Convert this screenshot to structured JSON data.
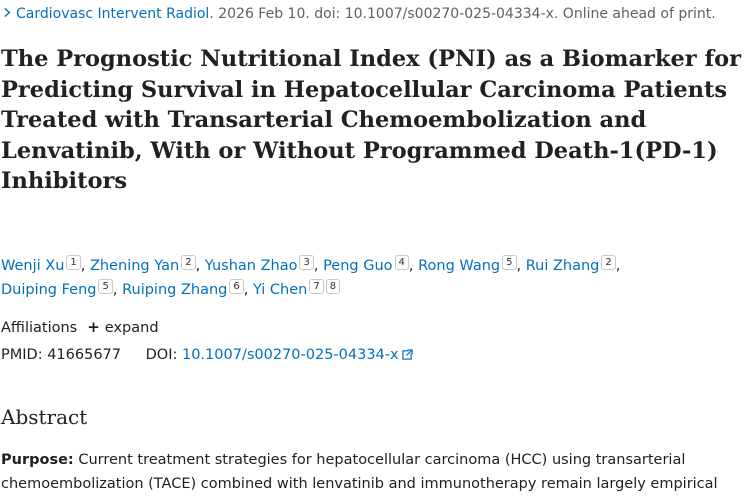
{
  "citation": {
    "journal": "Cardiovasc Intervent Radiol.",
    "rest": " 2026 Feb 10. doi: 10.1007/s00270-025-04334-x. Online ahead of print."
  },
  "title": "The Prognostic Nutritional Index (PNI) as a Biomarker for Predicting Survival in Hepatocellular Carcinoma Patients Treated with Transarterial Chemoembolization and Lenvatinib, With or Without Programmed Death-1(PD-1) Inhibitors",
  "authors": [
    {
      "name": "Wenji Xu",
      "affs": [
        "1"
      ]
    },
    {
      "name": "Zhening Yan",
      "affs": [
        "2"
      ]
    },
    {
      "name": "Yushan Zhao",
      "affs": [
        "3"
      ]
    },
    {
      "name": "Peng Guo",
      "affs": [
        "4"
      ]
    },
    {
      "name": "Rong Wang",
      "affs": [
        "5"
      ]
    },
    {
      "name": "Rui Zhang",
      "affs": [
        "2"
      ]
    },
    {
      "name": "Duiping Feng",
      "affs": [
        "5"
      ]
    },
    {
      "name": "Ruiping Zhang",
      "affs": [
        "6"
      ]
    },
    {
      "name": "Yi Chen",
      "affs": [
        "7",
        "8"
      ]
    }
  ],
  "affiliations": {
    "label": "Affiliations",
    "expand_label": "expand"
  },
  "ids": {
    "pmid_label": "PMID:",
    "pmid": "41665677",
    "doi_label": "DOI:",
    "doi": "10.1007/s00270-025-04334-x"
  },
  "abstract": {
    "heading": "Abstract",
    "purpose_label": "Purpose:",
    "purpose_text": " Current treatment strategies for hepatocellular carcinoma (HCC) using transarterial chemoembolization (TACE) combined with lenvatinib and immunotherapy remain largely empirical"
  },
  "colors": {
    "link": "#0071bc",
    "text": "#212121"
  }
}
